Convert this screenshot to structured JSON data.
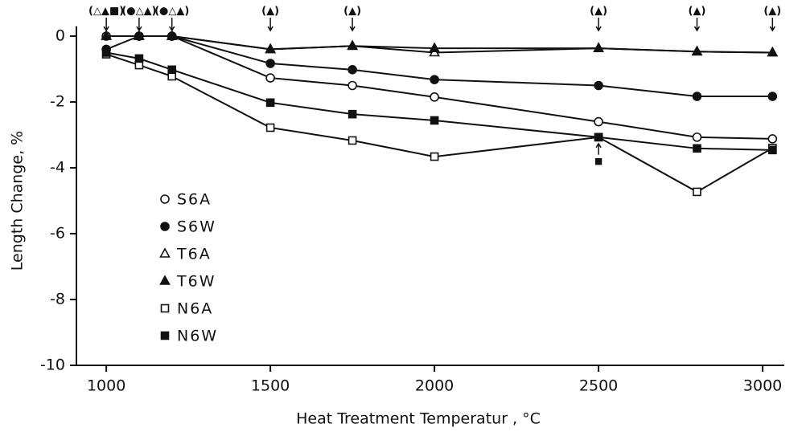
{
  "chart_data": {
    "type": "line",
    "xlabel": "Heat Treatment Temperatur , °C",
    "ylabel": "Length Change, %",
    "xlim": [
      909,
      3066
    ],
    "ylim": [
      -10,
      0.3
    ],
    "xticks": [
      1000,
      1500,
      2000,
      2500,
      3000
    ],
    "yticks": [
      0,
      -2,
      -4,
      -6,
      -8,
      -10
    ],
    "legend": "left",
    "color": "#111111",
    "x": [
      1000,
      1100,
      1200,
      1500,
      1750,
      2000,
      2500,
      2800,
      3030
    ],
    "series": [
      {
        "name": "S6A",
        "marker": "circle",
        "filled": false,
        "values": [
          0,
          0,
          0,
          -1.27,
          -1.5,
          -1.85,
          -2.6,
          -3.07,
          -3.12
        ]
      },
      {
        "name": "S6W",
        "marker": "circle",
        "filled": true,
        "values": [
          -0.4,
          0,
          0,
          -0.83,
          -1.02,
          -1.32,
          -1.5,
          -1.83,
          -1.83
        ]
      },
      {
        "name": "T6A",
        "marker": "triangle",
        "filled": false,
        "values": [
          0,
          0,
          0,
          -0.4,
          -0.3,
          -0.5,
          -0.37,
          -0.47,
          -0.5
        ]
      },
      {
        "name": "T6W",
        "marker": "triangle",
        "filled": true,
        "values": [
          0,
          0,
          0,
          -0.4,
          -0.3,
          -0.37,
          -0.37,
          -0.47,
          -0.5
        ]
      },
      {
        "name": "N6A",
        "marker": "square",
        "filled": false,
        "values": [
          -0.55,
          -0.88,
          -1.22,
          -2.78,
          -3.17,
          -3.66,
          -3.07,
          -4.73,
          -3.4
        ]
      },
      {
        "name": "N6W",
        "marker": "square",
        "filled": true,
        "values": [
          -0.5,
          -0.68,
          -1.02,
          -2.02,
          -2.37,
          -2.56,
          -3.07,
          -3.41,
          -3.46
        ]
      }
    ],
    "annotations": [
      {
        "x": 1000,
        "text": "(△▲■)"
      },
      {
        "x": 1100,
        "text": "(●△▲)"
      },
      {
        "x": 1200,
        "text": "(●△▲)"
      },
      {
        "x": 1500,
        "text": "(▲)"
      },
      {
        "x": 1750,
        "text": "(▲)"
      },
      {
        "x": 2500,
        "text": "(▲)"
      },
      {
        "x": 2800,
        "text": "(▲)"
      },
      {
        "x": 3030,
        "text": "(▲)"
      },
      {
        "x": 2500,
        "y": -3.8,
        "text": "■"
      }
    ]
  }
}
